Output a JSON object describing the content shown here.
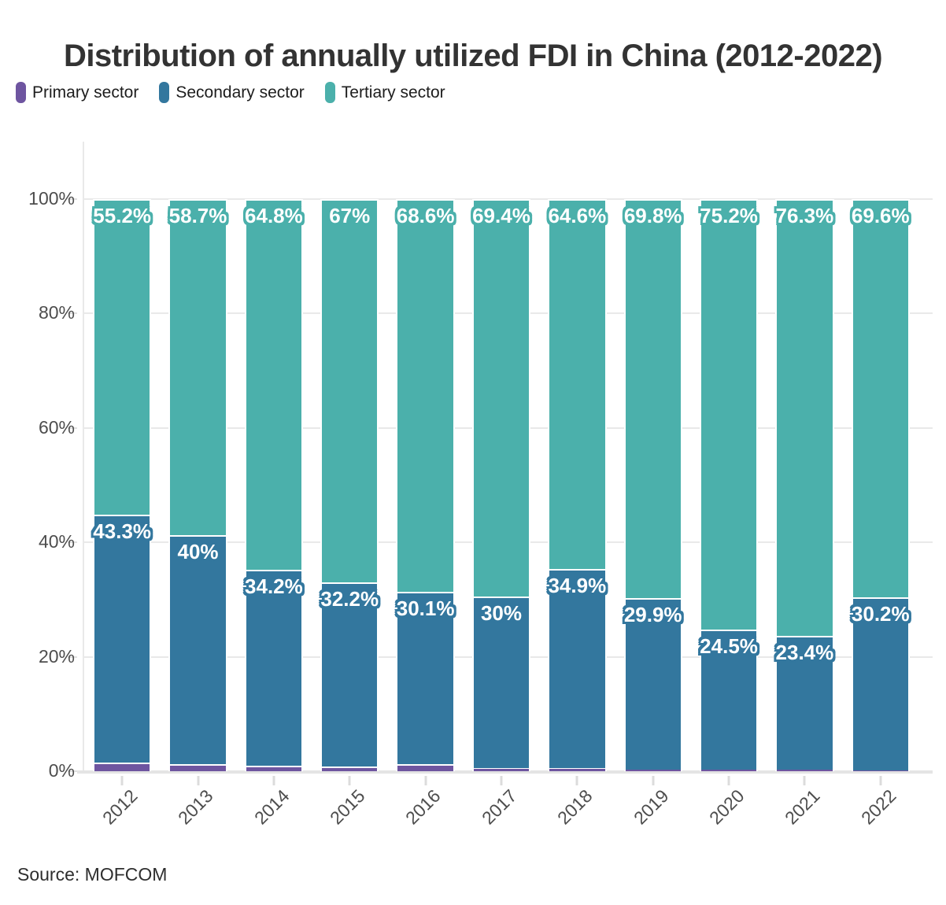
{
  "title": "Distribution of annually utilized FDI in China (2012-2022)",
  "source": "Source: MOFCOM",
  "legend": {
    "items": [
      {
        "label": "Primary sector",
        "color": "#6e55a0"
      },
      {
        "label": "Secondary sector",
        "color": "#33779e"
      },
      {
        "label": "Tertiary sector",
        "color": "#4bb0ab"
      }
    ]
  },
  "chart_data": {
    "type": "bar",
    "stacked": true,
    "title": "Distribution of annually utilized FDI in China (2012-2022)",
    "categories": [
      "2012",
      "2013",
      "2014",
      "2015",
      "2016",
      "2017",
      "2018",
      "2019",
      "2020",
      "2021",
      "2022"
    ],
    "series": [
      {
        "name": "Primary sector",
        "color": "#6e55a0",
        "values": [
          1.5,
          1.3,
          1.0,
          0.8,
          1.3,
          0.6,
          0.5,
          0.3,
          0.3,
          0.3,
          0.2
        ],
        "labels": [
          "",
          "",
          "",
          "",
          "",
          "",
          "",
          "",
          "",
          "",
          ""
        ]
      },
      {
        "name": "Secondary sector",
        "color": "#33779e",
        "values": [
          43.3,
          40,
          34.2,
          32.2,
          30.1,
          30,
          34.9,
          29.9,
          24.5,
          23.4,
          30.2
        ],
        "labels": [
          "43.3%",
          "40%",
          "34.2%",
          "32.2%",
          "30.1%",
          "30%",
          "34.9%",
          "29.9%",
          "24.5%",
          "23.4%",
          "30.2%"
        ]
      },
      {
        "name": "Tertiary sector",
        "color": "#4bb0ab",
        "values": [
          55.2,
          58.7,
          64.8,
          67,
          68.6,
          69.4,
          64.6,
          69.8,
          75.2,
          76.3,
          69.6
        ],
        "labels": [
          "55.2%",
          "58.7%",
          "64.8%",
          "67%",
          "68.6%",
          "69.4%",
          "64.6%",
          "69.8%",
          "75.2%",
          "76.3%",
          "69.6%"
        ]
      }
    ],
    "ylim": [
      0,
      100
    ],
    "yticks": [
      0,
      20,
      40,
      60,
      80,
      100
    ],
    "ytick_labels": [
      "0%",
      "20%",
      "40%",
      "60%",
      "80%",
      "100%"
    ],
    "grid": true,
    "legend_position": "top",
    "xlabel": "",
    "ylabel": ""
  },
  "colors": {
    "grid": "#e9e9e9",
    "axis_strip": "#e4e4e4",
    "tick": "#dcdcdc",
    "axis_text": "#4d4d4d",
    "title_text": "#333333"
  }
}
